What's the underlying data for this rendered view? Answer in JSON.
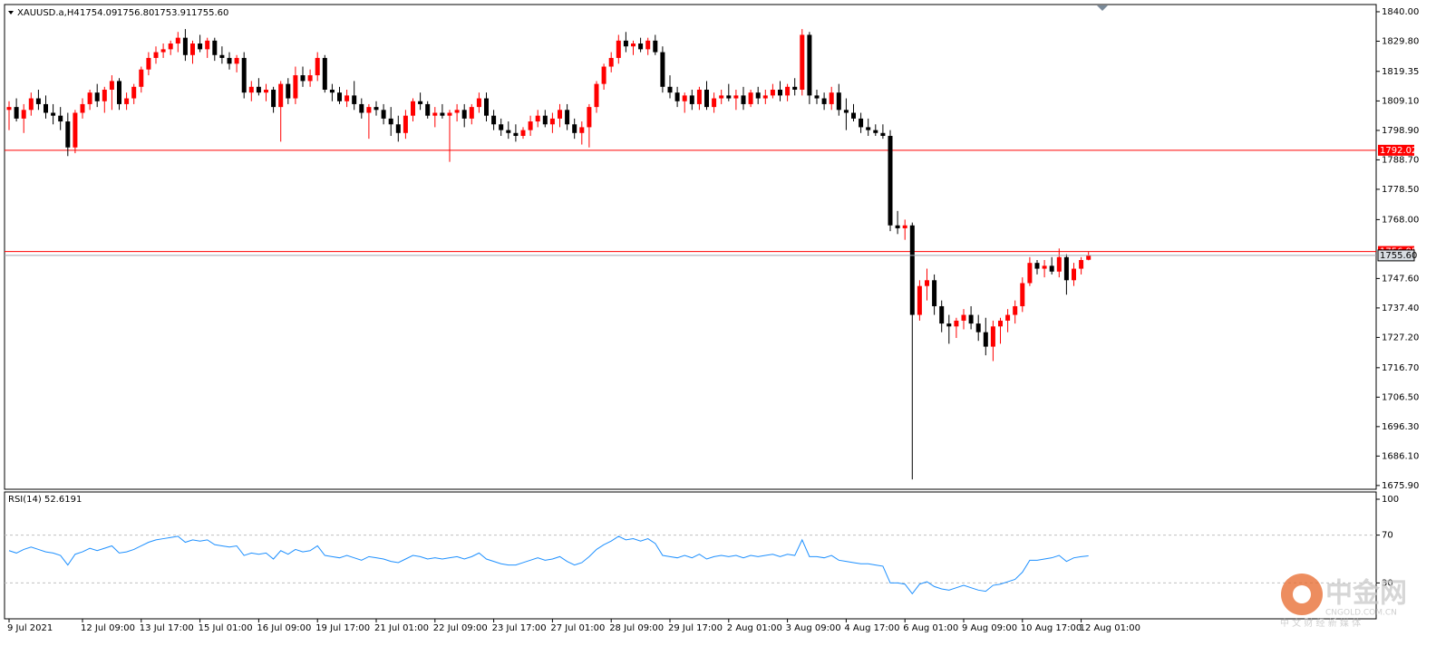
{
  "header": {
    "symbol": "XAUUSD.a,H4",
    "ohlc": [
      "1754.09",
      "1756.80",
      "1753.91",
      "1755.60"
    ]
  },
  "watermark": {
    "name": "中金网",
    "domain": "CNGOLD.COM.CN",
    "slogan": "中 文 财 经 新 媒 体"
  },
  "chart_data": {
    "type": "candlestick",
    "up_color": "#ff0000",
    "down_color": "#000000",
    "categories": [
      "9 Jul 2021",
      null,
      null,
      null,
      null,
      null,
      null,
      null,
      null,
      null,
      "12 Jul 09:00",
      null,
      null,
      null,
      null,
      null,
      null,
      null,
      "13 Jul 17:00",
      null,
      null,
      null,
      null,
      null,
      null,
      null,
      "15 Jul 01:00",
      null,
      null,
      null,
      null,
      null,
      null,
      null,
      "16 Jul 09:00",
      null,
      null,
      null,
      null,
      null,
      null,
      null,
      "19 Jul 17:00",
      null,
      null,
      null,
      null,
      null,
      null,
      null,
      "21 Jul 01:00",
      null,
      null,
      null,
      null,
      null,
      null,
      null,
      "22 Jul 09:00",
      null,
      null,
      null,
      null,
      null,
      null,
      null,
      "23 Jul 17:00",
      null,
      null,
      null,
      null,
      null,
      null,
      null,
      "27 Jul 01:00",
      null,
      null,
      null,
      null,
      null,
      null,
      null,
      "28 Jul 09:00",
      null,
      null,
      null,
      null,
      null,
      null,
      null,
      "29 Jul 17:00",
      null,
      null,
      null,
      null,
      null,
      null,
      null,
      "2 Aug 01:00",
      null,
      null,
      null,
      null,
      null,
      null,
      null,
      "3 Aug 09:00",
      null,
      null,
      null,
      null,
      null,
      null,
      null,
      "4 Aug 17:00",
      null,
      null,
      null,
      null,
      null,
      null,
      null,
      "6 Aug 01:00",
      null,
      null,
      null,
      null,
      null,
      null,
      null,
      "9 Aug 09:00",
      null,
      null,
      null,
      null,
      null,
      null,
      null,
      "10 Aug 17:00",
      null,
      null,
      null,
      null,
      null,
      null,
      null,
      "12 Aug 01:00",
      null
    ],
    "candles": [
      [
        1806,
        1809,
        1799,
        1807
      ],
      [
        1807,
        1810,
        1802,
        1803
      ],
      [
        1803,
        1808,
        1798,
        1806
      ],
      [
        1806,
        1812,
        1804,
        1810
      ],
      [
        1810,
        1813,
        1806,
        1808
      ],
      [
        1808,
        1811,
        1803,
        1805
      ],
      [
        1805,
        1808,
        1801,
        1804
      ],
      [
        1804,
        1807,
        1799,
        1802
      ],
      [
        1802,
        1805,
        1790,
        1793
      ],
      [
        1793,
        1806,
        1791,
        1805
      ],
      [
        1805,
        1810,
        1803,
        1808
      ],
      [
        1808,
        1813,
        1806,
        1812
      ],
      [
        1812,
        1815,
        1807,
        1809
      ],
      [
        1809,
        1814,
        1805,
        1813
      ],
      [
        1813,
        1818,
        1806,
        1816
      ],
      [
        1816,
        1817,
        1806,
        1808
      ],
      [
        1808,
        1812,
        1806,
        1810
      ],
      [
        1810,
        1815,
        1808,
        1814
      ],
      [
        1814,
        1821,
        1812,
        1820
      ],
      [
        1820,
        1826,
        1818,
        1824
      ],
      [
        1824,
        1828,
        1822,
        1826
      ],
      [
        1826,
        1829,
        1824,
        1827
      ],
      [
        1827,
        1830,
        1825,
        1829
      ],
      [
        1829,
        1833,
        1826,
        1831
      ],
      [
        1831,
        1834,
        1823,
        1825
      ],
      [
        1825,
        1830,
        1822,
        1829
      ],
      [
        1829,
        1832,
        1826,
        1827
      ],
      [
        1827,
        1831,
        1824,
        1830
      ],
      [
        1830,
        1831,
        1823,
        1825
      ],
      [
        1825,
        1828,
        1822,
        1824
      ],
      [
        1824,
        1826,
        1820,
        1822
      ],
      [
        1822,
        1825,
        1819,
        1824
      ],
      [
        1824,
        1826,
        1810,
        1812
      ],
      [
        1812,
        1816,
        1809,
        1814
      ],
      [
        1814,
        1817,
        1811,
        1812
      ],
      [
        1812,
        1815,
        1809,
        1813
      ],
      [
        1813,
        1814,
        1805,
        1807
      ],
      [
        1807,
        1816,
        1795,
        1815
      ],
      [
        1815,
        1817,
        1808,
        1810
      ],
      [
        1810,
        1821,
        1808,
        1818
      ],
      [
        1818,
        1821,
        1814,
        1816
      ],
      [
        1816,
        1820,
        1814,
        1818
      ],
      [
        1818,
        1826,
        1816,
        1824
      ],
      [
        1824,
        1825,
        1812,
        1813
      ],
      [
        1813,
        1815,
        1809,
        1812
      ],
      [
        1812,
        1814,
        1808,
        1809
      ],
      [
        1809,
        1813,
        1807,
        1811
      ],
      [
        1811,
        1816,
        1806,
        1808
      ],
      [
        1808,
        1810,
        1803,
        1805
      ],
      [
        1805,
        1808,
        1796,
        1807
      ],
      [
        1807,
        1809,
        1804,
        1806
      ],
      [
        1806,
        1808,
        1801,
        1803
      ],
      [
        1803,
        1807,
        1797,
        1801
      ],
      [
        1801,
        1804,
        1795,
        1798
      ],
      [
        1798,
        1806,
        1796,
        1804
      ],
      [
        1804,
        1810,
        1802,
        1809
      ],
      [
        1809,
        1812,
        1806,
        1808
      ],
      [
        1808,
        1809,
        1803,
        1804
      ],
      [
        1804,
        1807,
        1800,
        1805
      ],
      [
        1805,
        1808,
        1803,
        1804
      ],
      [
        1804,
        1806,
        1788,
        1805
      ],
      [
        1805,
        1808,
        1802,
        1806
      ],
      [
        1806,
        1808,
        1800,
        1803
      ],
      [
        1803,
        1808,
        1801,
        1807
      ],
      [
        1807,
        1812,
        1805,
        1810
      ],
      [
        1810,
        1812,
        1802,
        1804
      ],
      [
        1804,
        1806,
        1799,
        1801
      ],
      [
        1801,
        1803,
        1797,
        1799
      ],
      [
        1799,
        1802,
        1796,
        1798
      ],
      [
        1798,
        1801,
        1795,
        1797
      ],
      [
        1797,
        1800,
        1796,
        1799
      ],
      [
        1799,
        1804,
        1797,
        1802
      ],
      [
        1802,
        1806,
        1800,
        1804
      ],
      [
        1804,
        1806,
        1800,
        1801
      ],
      [
        1801,
        1805,
        1798,
        1803
      ],
      [
        1803,
        1808,
        1800,
        1806
      ],
      [
        1806,
        1808,
        1799,
        1801
      ],
      [
        1801,
        1803,
        1796,
        1798
      ],
      [
        1798,
        1802,
        1794,
        1800
      ],
      [
        1800,
        1808,
        1793,
        1807
      ],
      [
        1807,
        1816,
        1805,
        1815
      ],
      [
        1815,
        1822,
        1813,
        1821
      ],
      [
        1821,
        1826,
        1819,
        1824
      ],
      [
        1824,
        1832,
        1822,
        1830
      ],
      [
        1830,
        1833,
        1826,
        1828
      ],
      [
        1828,
        1830,
        1825,
        1829
      ],
      [
        1829,
        1831,
        1826,
        1827
      ],
      [
        1827,
        1831,
        1825,
        1830
      ],
      [
        1830,
        1832,
        1825,
        1826
      ],
      [
        1826,
        1828,
        1812,
        1814
      ],
      [
        1814,
        1818,
        1810,
        1812
      ],
      [
        1812,
        1814,
        1807,
        1809
      ],
      [
        1809,
        1812,
        1805,
        1811
      ],
      [
        1811,
        1813,
        1806,
        1808
      ],
      [
        1808,
        1814,
        1806,
        1813
      ],
      [
        1813,
        1816,
        1806,
        1807
      ],
      [
        1807,
        1812,
        1805,
        1810
      ],
      [
        1810,
        1813,
        1808,
        1811
      ],
      [
        1811,
        1815,
        1809,
        1810
      ],
      [
        1810,
        1813,
        1806,
        1811
      ],
      [
        1811,
        1814,
        1806,
        1808
      ],
      [
        1808,
        1813,
        1807,
        1812
      ],
      [
        1812,
        1814,
        1808,
        1810
      ],
      [
        1810,
        1813,
        1808,
        1811
      ],
      [
        1811,
        1815,
        1810,
        1813
      ],
      [
        1813,
        1816,
        1809,
        1811
      ],
      [
        1811,
        1815,
        1809,
        1814
      ],
      [
        1814,
        1817,
        1811,
        1813
      ],
      [
        1813,
        1834,
        1811,
        1832
      ],
      [
        1832,
        1833,
        1808,
        1811
      ],
      [
        1811,
        1813,
        1808,
        1810
      ],
      [
        1810,
        1812,
        1806,
        1808
      ],
      [
        1808,
        1814,
        1806,
        1812
      ],
      [
        1812,
        1815,
        1804,
        1806
      ],
      [
        1806,
        1810,
        1799,
        1805
      ],
      [
        1805,
        1808,
        1802,
        1803
      ],
      [
        1803,
        1805,
        1798,
        1800
      ],
      [
        1800,
        1803,
        1797,
        1799
      ],
      [
        1799,
        1801,
        1797,
        1798
      ],
      [
        1798,
        1801,
        1796,
        1797
      ],
      [
        1797,
        1799,
        1764,
        1766
      ],
      [
        1766,
        1771,
        1763,
        1765
      ],
      [
        1765,
        1768,
        1761,
        1766
      ],
      [
        1766,
        1767,
        1678,
        1735
      ],
      [
        1735,
        1747,
        1733,
        1745
      ],
      [
        1745,
        1751,
        1740,
        1747
      ],
      [
        1747,
        1749,
        1735,
        1738
      ],
      [
        1738,
        1740,
        1729,
        1732
      ],
      [
        1732,
        1735,
        1725,
        1731
      ],
      [
        1731,
        1734,
        1727,
        1733
      ],
      [
        1733,
        1737,
        1730,
        1735
      ],
      [
        1735,
        1738,
        1730,
        1732
      ],
      [
        1732,
        1735,
        1726,
        1729
      ],
      [
        1729,
        1734,
        1721,
        1724
      ],
      [
        1724,
        1733,
        1719,
        1731
      ],
      [
        1731,
        1734,
        1725,
        1733
      ],
      [
        1733,
        1737,
        1729,
        1735
      ],
      [
        1735,
        1740,
        1732,
        1738
      ],
      [
        1738,
        1748,
        1736,
        1746
      ],
      [
        1746,
        1755,
        1745,
        1753
      ],
      [
        1753,
        1754,
        1749,
        1751
      ],
      [
        1751,
        1754,
        1748,
        1752
      ],
      [
        1752,
        1755,
        1749,
        1750
      ],
      [
        1750,
        1758,
        1748,
        1755
      ],
      [
        1755,
        1756,
        1742,
        1747
      ],
      [
        1747,
        1753,
        1745,
        1751
      ],
      [
        1751,
        1755,
        1749,
        1754
      ],
      [
        1754.09,
        1756.8,
        1753.91,
        1755.6
      ]
    ],
    "ylim": [
      1674.6,
      1842.5
    ],
    "yticks": [
      {
        "value": 1840,
        "label": "1840.00"
      },
      {
        "value": 1829.8,
        "label": "1829.80"
      },
      {
        "value": 1819.35,
        "label": "1819.35"
      },
      {
        "value": 1809.1,
        "label": "1809.10"
      },
      {
        "value": 1798.9,
        "label": "1798.90"
      },
      {
        "value": 1788.7,
        "label": "1788.70"
      },
      {
        "value": 1778.5,
        "label": "1778.50"
      },
      {
        "value": 1768,
        "label": "1768.00"
      },
      {
        "value": 1747.6,
        "label": "1747.60"
      },
      {
        "value": 1737.4,
        "label": "1737.40"
      },
      {
        "value": 1727.2,
        "label": "1727.20"
      },
      {
        "value": 1716.7,
        "label": "1716.70"
      },
      {
        "value": 1706.5,
        "label": "1706.50"
      },
      {
        "value": 1696.3,
        "label": "1696.30"
      },
      {
        "value": 1686.1,
        "label": "1686.10"
      },
      {
        "value": 1675.9,
        "label": "1675.90"
      }
    ],
    "hlines": [
      {
        "value": 1792.02,
        "label": "1792.02",
        "color": "#ff0000"
      },
      {
        "value": 1756.95,
        "label": "1756.95",
        "color": "#ff0000"
      }
    ],
    "indicator": {
      "type": "line",
      "label": "RSI(14) 52.6191",
      "color": "#1e90ff",
      "ylim": [
        0,
        100
      ],
      "yticks": [
        100,
        70,
        30
      ],
      "levels": [
        70,
        30
      ],
      "values": [
        57,
        55,
        58,
        60,
        58,
        56,
        55,
        53,
        45,
        54,
        56,
        59,
        57,
        59,
        61,
        55,
        56,
        58,
        61,
        64,
        66,
        67,
        68,
        69,
        64,
        66,
        65,
        66,
        62,
        61,
        60,
        61,
        53,
        55,
        54,
        55,
        50,
        57,
        54,
        58,
        56,
        57,
        61,
        53,
        52,
        51,
        53,
        51,
        49,
        52,
        51,
        50,
        48,
        47,
        50,
        53,
        52,
        50,
        51,
        50,
        51,
        52,
        50,
        52,
        55,
        50,
        48,
        46,
        45,
        45,
        47,
        49,
        51,
        49,
        50,
        52,
        48,
        45,
        47,
        52,
        58,
        62,
        65,
        69,
        66,
        67,
        65,
        67,
        63,
        53,
        52,
        51,
        53,
        51,
        54,
        50,
        52,
        53,
        52,
        53,
        51,
        53,
        52,
        53,
        54,
        52,
        54,
        53,
        66,
        52,
        52,
        51,
        53,
        49,
        48,
        47,
        46,
        46,
        45,
        44,
        30,
        30,
        29,
        21,
        29,
        31,
        27,
        25,
        24,
        26,
        28,
        26,
        24,
        23,
        28,
        29,
        31,
        33,
        39,
        49,
        49,
        50,
        51,
        53,
        48,
        51,
        52,
        52.6191
      ]
    }
  }
}
